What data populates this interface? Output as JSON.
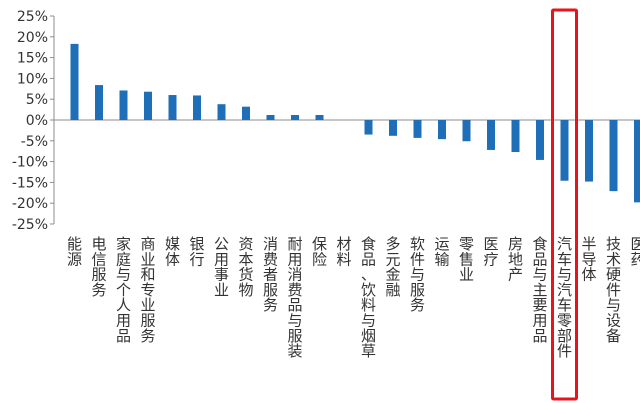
{
  "chart_data": {
    "type": "bar",
    "title": "",
    "xlabel": "",
    "ylabel": "",
    "ylim": [
      -25,
      25
    ],
    "yticks": [
      25,
      20,
      15,
      10,
      5,
      0,
      -5,
      -10,
      -15,
      -20,
      -25
    ],
    "ytick_labels": [
      "25%",
      "20%",
      "15%",
      "10%",
      "5%",
      "0%",
      "-5%",
      "-10%",
      "-15%",
      "-20%",
      "-25%"
    ],
    "grid": false,
    "legend": "none",
    "bar_color": "#1f6fb8",
    "highlight_color": "#e8131b",
    "highlight_category_index": 20,
    "categories": [
      "能源",
      "电信服务",
      "家庭与个人用品",
      "商业和专业服务",
      "媒体",
      "银行",
      "公用事业",
      "资本货物",
      "消费者服务",
      "耐用消费品与服装",
      "保险",
      "材料",
      "食品、饮料与烟草",
      "多元金融",
      "软件与服务",
      "运输",
      "零售业",
      "医疗",
      "房地产",
      "食品与主要用品",
      "汽车与汽车零部件",
      "半导体",
      "技术硬件与设备",
      "医药"
    ],
    "values": [
      18.3,
      8.4,
      7.1,
      6.8,
      6.0,
      5.9,
      3.8,
      3.2,
      1.2,
      1.2,
      1.2,
      0.0,
      -3.5,
      -3.8,
      -4.3,
      -4.6,
      -5.1,
      -7.2,
      -7.7,
      -9.6,
      -14.6,
      -14.8,
      -17.1,
      -19.8
    ]
  }
}
